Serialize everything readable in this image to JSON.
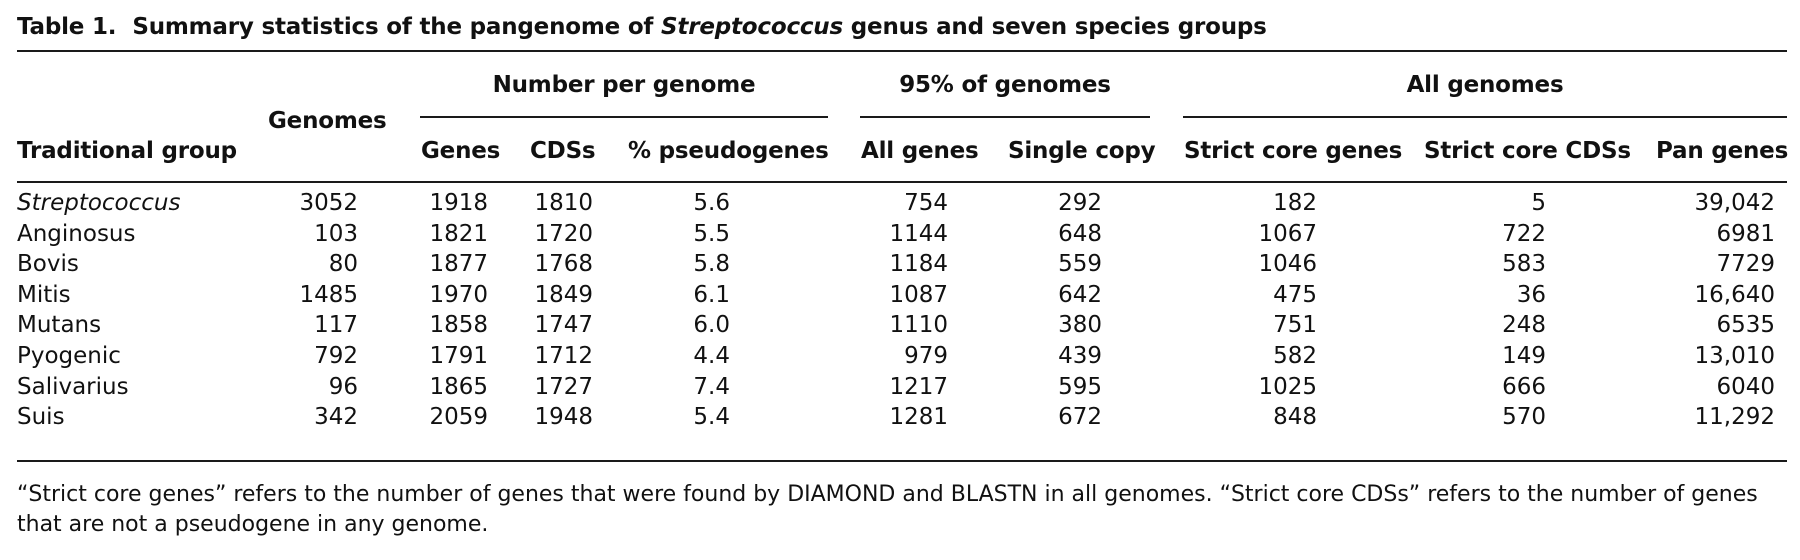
{
  "table": {
    "label": "Table 1.",
    "title_before": "Summary statistics of the pangenome of ",
    "title_italic": "Streptococcus",
    "title_after": " genus and seven species groups",
    "group_headers": {
      "per_genome": "Number per genome",
      "pct95": "95% of genomes",
      "all": "All genomes"
    },
    "columns": {
      "group": "Traditional group",
      "genomes": "Genomes",
      "genes": "Genes",
      "cdss": "CDSs",
      "pct_pseudo": "% pseudogenes",
      "all_genes": "All genes",
      "single_copy": "Single copy",
      "strict_core_genes": "Strict core genes",
      "strict_core_cdss": "Strict core CDSs",
      "pan_genes": "Pan genes"
    },
    "rows": [
      [
        "Streptococcus",
        "3052",
        "1918",
        "1810",
        "5.6",
        "754",
        "292",
        "182",
        "5",
        "39,042"
      ],
      [
        "Anginosus",
        "103",
        "1821",
        "1720",
        "5.5",
        "1144",
        "648",
        "1067",
        "722",
        "6981"
      ],
      [
        "Bovis",
        "80",
        "1877",
        "1768",
        "5.8",
        "1184",
        "559",
        "1046",
        "583",
        "7729"
      ],
      [
        "Mitis",
        "1485",
        "1970",
        "1849",
        "6.1",
        "1087",
        "642",
        "475",
        "36",
        "16,640"
      ],
      [
        "Mutans",
        "117",
        "1858",
        "1747",
        "6.0",
        "1110",
        "380",
        "751",
        "248",
        "6535"
      ],
      [
        "Pyogenic",
        "792",
        "1791",
        "1712",
        "4.4",
        "979",
        "439",
        "582",
        "149",
        "13,010"
      ],
      [
        "Salivarius",
        "96",
        "1865",
        "1727",
        "7.4",
        "1217",
        "595",
        "1025",
        "666",
        "6040"
      ],
      [
        "Suis",
        "342",
        "2059",
        "1948",
        "5.4",
        "1281",
        "672",
        "848",
        "570",
        "11,292"
      ]
    ],
    "footnote": "“Strict core genes” refers to the number of genes that were found by DIAMOND and BLASTN in all genomes. “Strict core CDSs” refers to the number of genes that are not a pseudogene in any genome."
  }
}
